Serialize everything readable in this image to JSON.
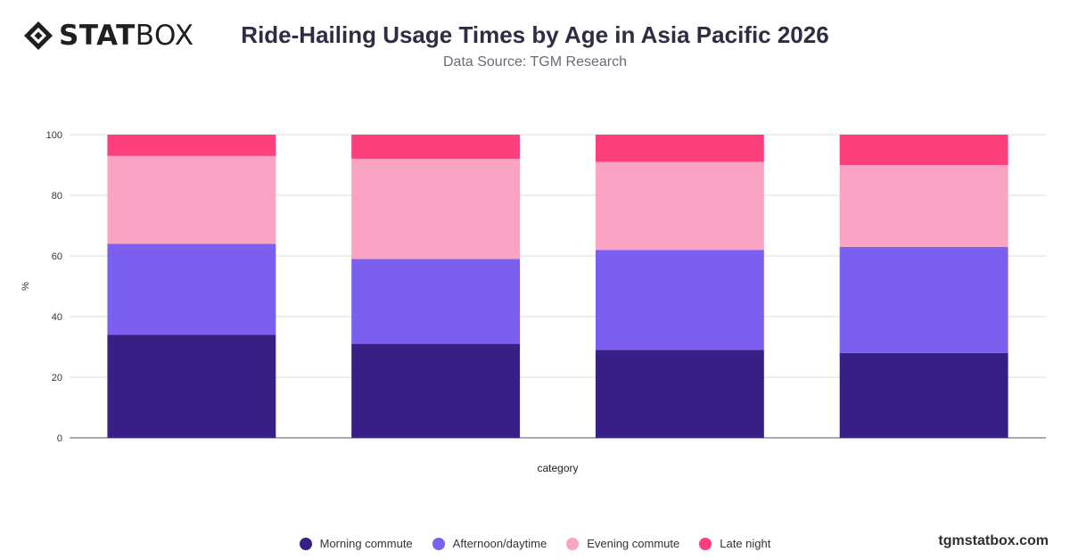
{
  "brand": {
    "strong": "STAT",
    "light": "BOX",
    "site": "tgmstatbox.com"
  },
  "chart_data": {
    "type": "bar",
    "stacked": true,
    "title": "Ride-Hailing Usage Times by Age in Asia Pacific 2026",
    "subtitle": "Data Source: TGM Research",
    "xlabel": "category",
    "ylabel": "%",
    "ylim": [
      0,
      100
    ],
    "yticks": [
      0,
      20,
      40,
      60,
      80,
      100
    ],
    "categories": [
      "",
      "",
      "",
      ""
    ],
    "grid": true,
    "legend_position": "bottom",
    "series": [
      {
        "name": "Morning commute",
        "color": "#371f85",
        "values": [
          34,
          31,
          29,
          28
        ]
      },
      {
        "name": "Afternoon/daytime",
        "color": "#7b5fee",
        "values": [
          30,
          28,
          33,
          35
        ]
      },
      {
        "name": "Evening commute",
        "color": "#fba3c3",
        "values": [
          29,
          33,
          29,
          27
        ]
      },
      {
        "name": "Late night",
        "color": "#fd3f7b",
        "values": [
          7,
          8,
          9,
          10
        ]
      }
    ]
  }
}
